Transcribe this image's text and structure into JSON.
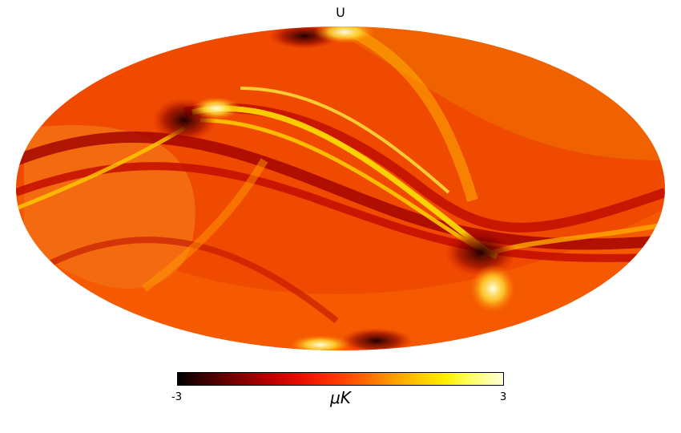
{
  "map": {
    "title": "U",
    "projection": "mollweide",
    "colormap": "hot"
  },
  "colorbar": {
    "min_label": "-3",
    "max_label": "3",
    "unit_label": "μK"
  }
}
